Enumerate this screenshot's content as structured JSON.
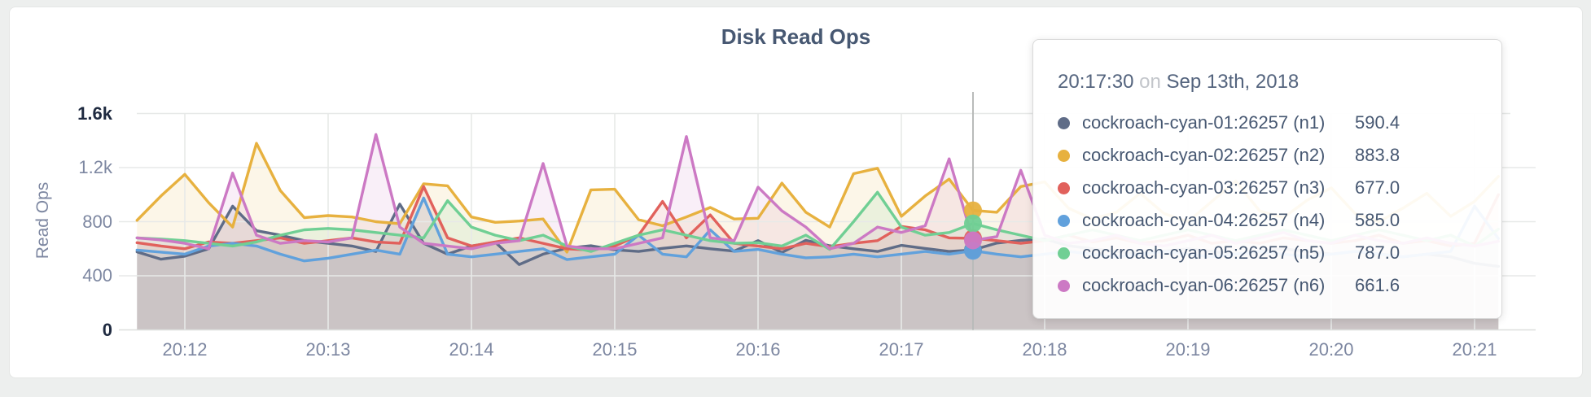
{
  "page": {
    "background": "#edefee",
    "card_background": "#ffffff"
  },
  "chart": {
    "title": "Disk Read Ops",
    "y_axis_label": "Read Ops",
    "y_ticks": [
      {
        "label": "1.6k",
        "value": 1600,
        "strong": true
      },
      {
        "label": "1.2k",
        "value": 1200,
        "strong": false
      },
      {
        "label": "800",
        "value": 800,
        "strong": false
      },
      {
        "label": "400",
        "value": 400,
        "strong": false
      },
      {
        "label": "0",
        "value": 0,
        "strong": true
      }
    ],
    "x_ticks": [
      "20:12",
      "20:13",
      "20:14",
      "20:15",
      "20:16",
      "20:17",
      "20:18",
      "20:19",
      "20:20",
      "20:21"
    ],
    "hover": {
      "index": 35,
      "time": "20:17:30"
    },
    "tooltip": {
      "time": "20:17:30",
      "connector": "on",
      "date": "Sep 13th, 2018",
      "rows": [
        {
          "label": "cockroach-cyan-01:26257 (n1)",
          "value": "590.4",
          "color": "#5F6C87"
        },
        {
          "label": "cockroach-cyan-02:26257 (n2)",
          "value": "883.8",
          "color": "#E7B13F"
        },
        {
          "label": "cockroach-cyan-03:26257 (n3)",
          "value": "677.0",
          "color": "#E1615C"
        },
        {
          "label": "cockroach-cyan-04:26257 (n4)",
          "value": "585.0",
          "color": "#61A1DC"
        },
        {
          "label": "cockroach-cyan-05:26257 (n5)",
          "value": "787.0",
          "color": "#70CF94"
        },
        {
          "label": "cockroach-cyan-06:26257 (n6)",
          "value": "661.6",
          "color": "#CC79C4"
        }
      ]
    }
  },
  "chart_data": {
    "type": "line",
    "title": "Disk Read Ops",
    "ylabel": "Read Ops",
    "ylim": [
      0,
      1600
    ],
    "grid": true,
    "x_tick_labels": [
      "20:12",
      "20:13",
      "20:14",
      "20:15",
      "20:16",
      "20:17",
      "20:18",
      "20:19",
      "20:20",
      "20:21"
    ],
    "sample_interval_seconds": 10,
    "x_times": [
      "20:11:40",
      "20:11:50",
      "20:12:00",
      "20:12:10",
      "20:12:20",
      "20:12:30",
      "20:12:40",
      "20:12:50",
      "20:13:00",
      "20:13:10",
      "20:13:20",
      "20:13:30",
      "20:13:40",
      "20:13:50",
      "20:14:00",
      "20:14:10",
      "20:14:20",
      "20:14:30",
      "20:14:40",
      "20:14:50",
      "20:15:00",
      "20:15:10",
      "20:15:20",
      "20:15:30",
      "20:15:40",
      "20:15:50",
      "20:16:00",
      "20:16:10",
      "20:16:20",
      "20:16:30",
      "20:16:40",
      "20:16:50",
      "20:17:00",
      "20:17:10",
      "20:17:20",
      "20:17:30",
      "20:17:40",
      "20:17:50",
      "20:18:00",
      "20:18:10",
      "20:18:20",
      "20:18:30",
      "20:18:40",
      "20:18:50",
      "20:19:00",
      "20:19:10",
      "20:19:20",
      "20:19:30",
      "20:19:40",
      "20:19:50",
      "20:20:00",
      "20:20:10",
      "20:20:20",
      "20:20:30",
      "20:20:40",
      "20:20:50",
      "20:21:00",
      "20:21:10"
    ],
    "hover_time": "20:17:30",
    "series": [
      {
        "name": "cockroach-cyan-01:26257 (n1)",
        "color": "#5F6C87",
        "values": [
          577,
          523,
          545,
          600,
          915,
          733,
          700,
          660,
          640,
          620,
          580,
          930,
          640,
          560,
          620,
          648,
          483,
          560,
          604,
          622,
          592,
          580,
          603,
          621,
          600,
          582,
          660,
          572,
          662,
          622,
          600,
          580,
          625,
          602,
          580,
          590.4,
          642,
          662,
          672,
          622,
          600,
          580,
          560,
          582,
          600,
          580,
          560,
          582,
          600,
          580,
          560,
          580,
          562,
          540,
          560,
          540,
          492,
          470
        ]
      },
      {
        "name": "cockroach-cyan-02:26257 (n2)",
        "color": "#E7B13F",
        "values": [
          810,
          990,
          1150,
          940,
          760,
          1380,
          1030,
          830,
          845,
          835,
          800,
          785,
          1080,
          1065,
          835,
          795,
          805,
          820,
          575,
          1035,
          1040,
          815,
          770,
          835,
          905,
          820,
          825,
          1085,
          870,
          760,
          1155,
          1195,
          840,
          990,
          1115,
          883.8,
          870,
          1060,
          1095,
          900,
          820,
          870,
          1010,
          860,
          800,
          950,
          1100,
          880,
          830,
          960,
          1050,
          860,
          800,
          900,
          1010,
          840,
          950,
          1135
        ]
      },
      {
        "name": "cockroach-cyan-03:26257 (n3)",
        "color": "#E1615C",
        "values": [
          645,
          620,
          600,
          650,
          640,
          660,
          680,
          640,
          660,
          680,
          650,
          640,
          1060,
          680,
          620,
          650,
          680,
          640,
          600,
          590,
          620,
          700,
          950,
          680,
          850,
          640,
          620,
          600,
          640,
          615,
          640,
          660,
          765,
          740,
          680,
          677,
          660,
          640,
          660,
          700,
          650,
          680,
          640,
          660,
          700,
          640,
          660,
          640,
          680,
          660,
          640,
          660,
          700,
          640,
          660,
          620,
          640,
          1000
        ]
      },
      {
        "name": "cockroach-cyan-04:26257 (n4)",
        "color": "#61A1DC",
        "values": [
          590,
          575,
          560,
          620,
          640,
          620,
          560,
          510,
          530,
          560,
          590,
          560,
          975,
          560,
          540,
          560,
          580,
          600,
          520,
          540,
          560,
          700,
          560,
          540,
          740,
          580,
          595,
          560,
          533,
          540,
          560,
          540,
          560,
          580,
          560,
          585,
          560,
          540,
          560,
          580,
          560,
          540,
          560,
          580,
          560,
          540,
          560,
          580,
          560,
          540,
          560,
          580,
          560,
          540,
          560,
          580,
          915,
          675
        ]
      },
      {
        "name": "cockroach-cyan-05:26257 (n5)",
        "color": "#70CF94",
        "values": [
          680,
          672,
          660,
          640,
          620,
          650,
          700,
          740,
          750,
          740,
          720,
          700,
          680,
          955,
          760,
          700,
          660,
          700,
          620,
          580,
          640,
          700,
          740,
          700,
          660,
          640,
          645,
          620,
          700,
          595,
          800,
          1018,
          760,
          700,
          720,
          787,
          740,
          700,
          660,
          700,
          740,
          700,
          660,
          700,
          740,
          700,
          660,
          700,
          740,
          700,
          660,
          700,
          740,
          700,
          660,
          700,
          620,
          745
        ]
      },
      {
        "name": "cockroach-cyan-06:26257 (n6)",
        "color": "#CC79C4",
        "values": [
          680,
          665,
          640,
          600,
          1160,
          700,
          640,
          660,
          650,
          680,
          1445,
          760,
          640,
          620,
          600,
          640,
          660,
          1230,
          620,
          600,
          600,
          640,
          680,
          1430,
          680,
          660,
          1055,
          880,
          760,
          600,
          640,
          760,
          720,
          770,
          1265,
          661.6,
          690,
          1180,
          700,
          640,
          660,
          700,
          640,
          620,
          660,
          700,
          640,
          680,
          720,
          660,
          640,
          700,
          660,
          640,
          680,
          640,
          620,
          655
        ]
      }
    ]
  }
}
